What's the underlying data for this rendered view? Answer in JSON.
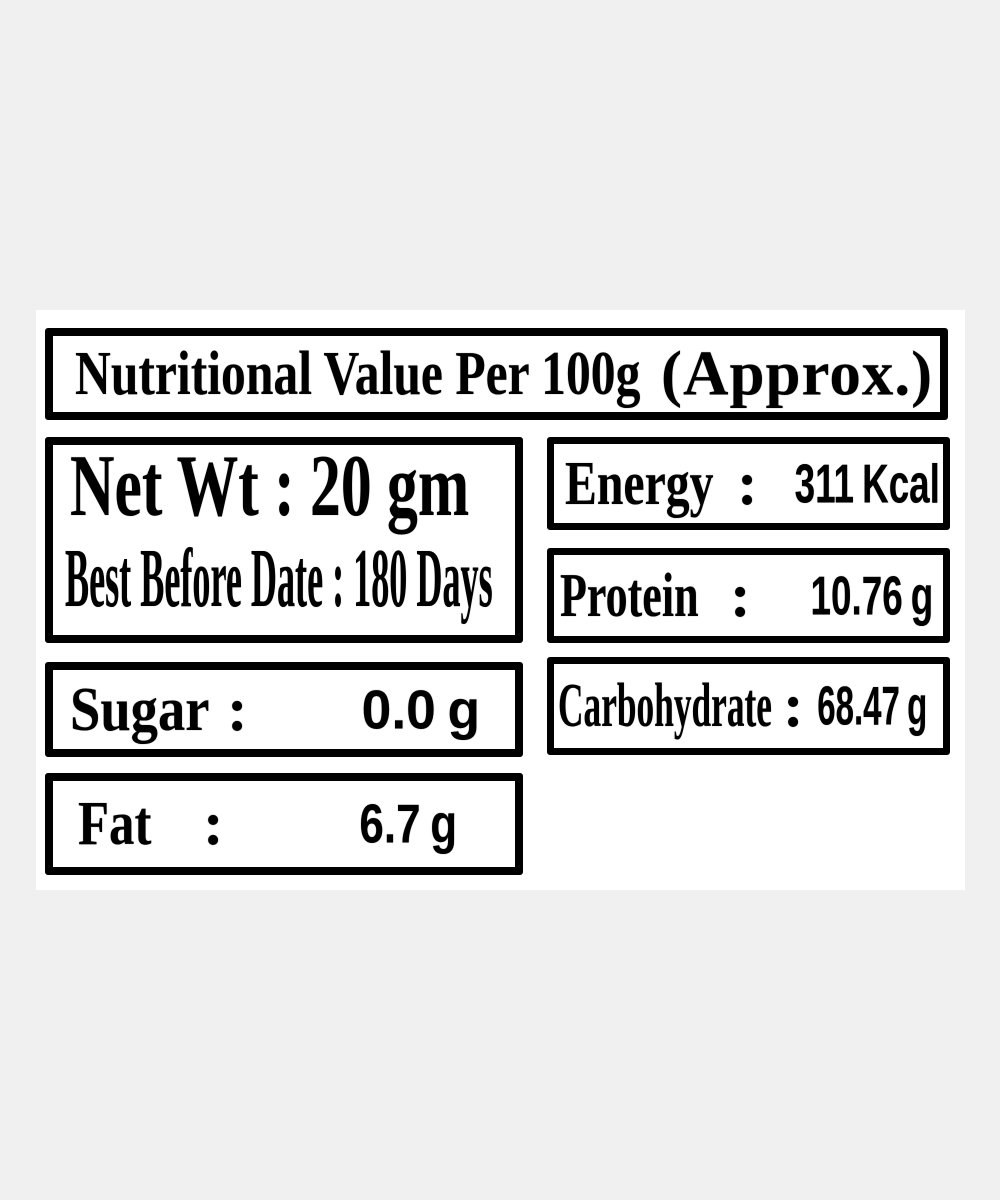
{
  "colors": {
    "page_background": "#f0f0f0",
    "sheet_background": "#ffffff",
    "ink": "#000000"
  },
  "title": {
    "main": "Nutritional Value Per 100g",
    "suffix": "(Approx.)"
  },
  "weight": {
    "net_wt_line": "Net Wt : 20 gm",
    "best_before_line": "Best Before Date : 180 Days"
  },
  "nutrients": {
    "energy": {
      "name": "Energy",
      "colon": ":",
      "value": "311",
      "unit": "Kcal"
    },
    "protein": {
      "name": "Protein",
      "colon": ":",
      "value": "10.76",
      "unit": "g"
    },
    "carbohydrate": {
      "name": "Carbohydrate",
      "colon": ":",
      "value": "68.47",
      "unit": "g"
    },
    "sugar": {
      "name": "Sugar",
      "colon": ":",
      "value": "0.0",
      "unit": "g"
    },
    "fat": {
      "name": "Fat",
      "colon": ":",
      "value": "6.7",
      "unit": "g"
    }
  }
}
